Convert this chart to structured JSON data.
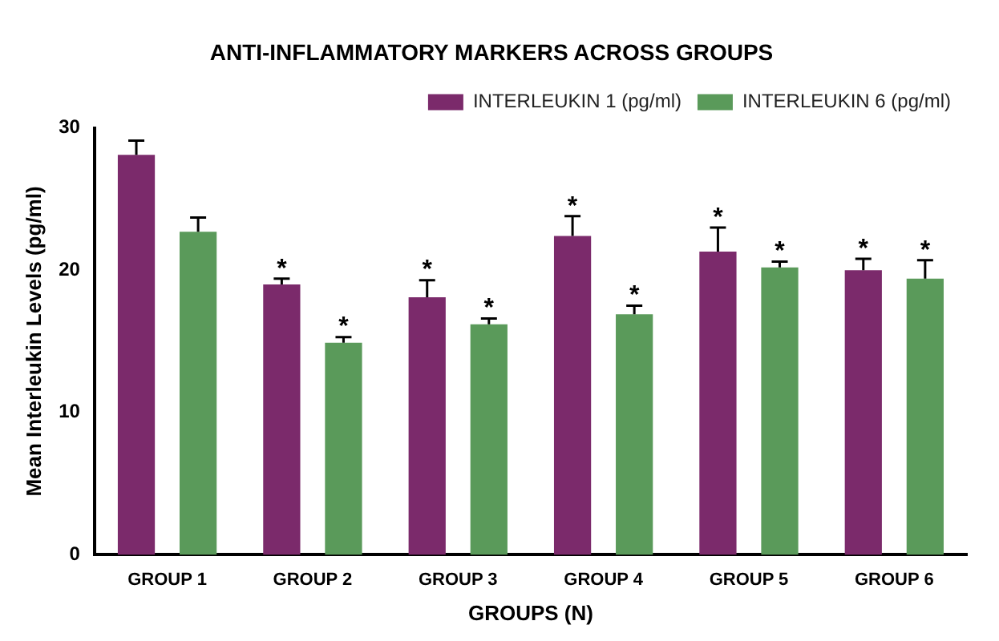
{
  "chart_data": {
    "type": "bar",
    "title": "ANTI-INFLAMMATORY MARKERS ACROSS GROUPS",
    "xlabel": "GROUPS (N)",
    "ylabel": "Mean Interleukin Levels (pg/ml)",
    "categories": [
      "GROUP 1",
      "GROUP 2",
      "GROUP 3",
      "GROUP 4",
      "GROUP 5",
      "GROUP 6"
    ],
    "series": [
      {
        "name": "INTERLEUKIN 1 (pg/ml)",
        "color": "#7b2a6b",
        "values": [
          28.1,
          19.0,
          18.1,
          22.4,
          21.3,
          20.0
        ],
        "errors": [
          [
            28.1,
            29.1
          ],
          [
            19.0,
            19.4
          ],
          [
            18.1,
            19.3
          ],
          [
            22.4,
            23.8
          ],
          [
            21.3,
            23.0
          ],
          [
            20.0,
            20.8
          ]
        ],
        "value_labels": [
          null,
          "*",
          "*",
          "*",
          "*",
          "*"
        ]
      },
      {
        "name": "INTERLEUKIN 6 (pg/ml)",
        "color": "#5a9a5a",
        "values": [
          22.7,
          14.9,
          16.2,
          16.9,
          20.2,
          19.4
        ],
        "errors": [
          [
            22.7,
            23.7
          ],
          [
            14.9,
            15.3
          ],
          [
            16.2,
            16.6
          ],
          [
            16.9,
            17.5
          ],
          [
            20.2,
            20.6
          ],
          [
            19.4,
            20.7
          ]
        ],
        "value_labels": [
          null,
          "*",
          "*",
          "*",
          "*",
          "*"
        ]
      }
    ],
    "ylim": [
      0,
      30
    ],
    "yticks": [
      0,
      10,
      20,
      30
    ],
    "grid": false,
    "legend": "top right"
  }
}
